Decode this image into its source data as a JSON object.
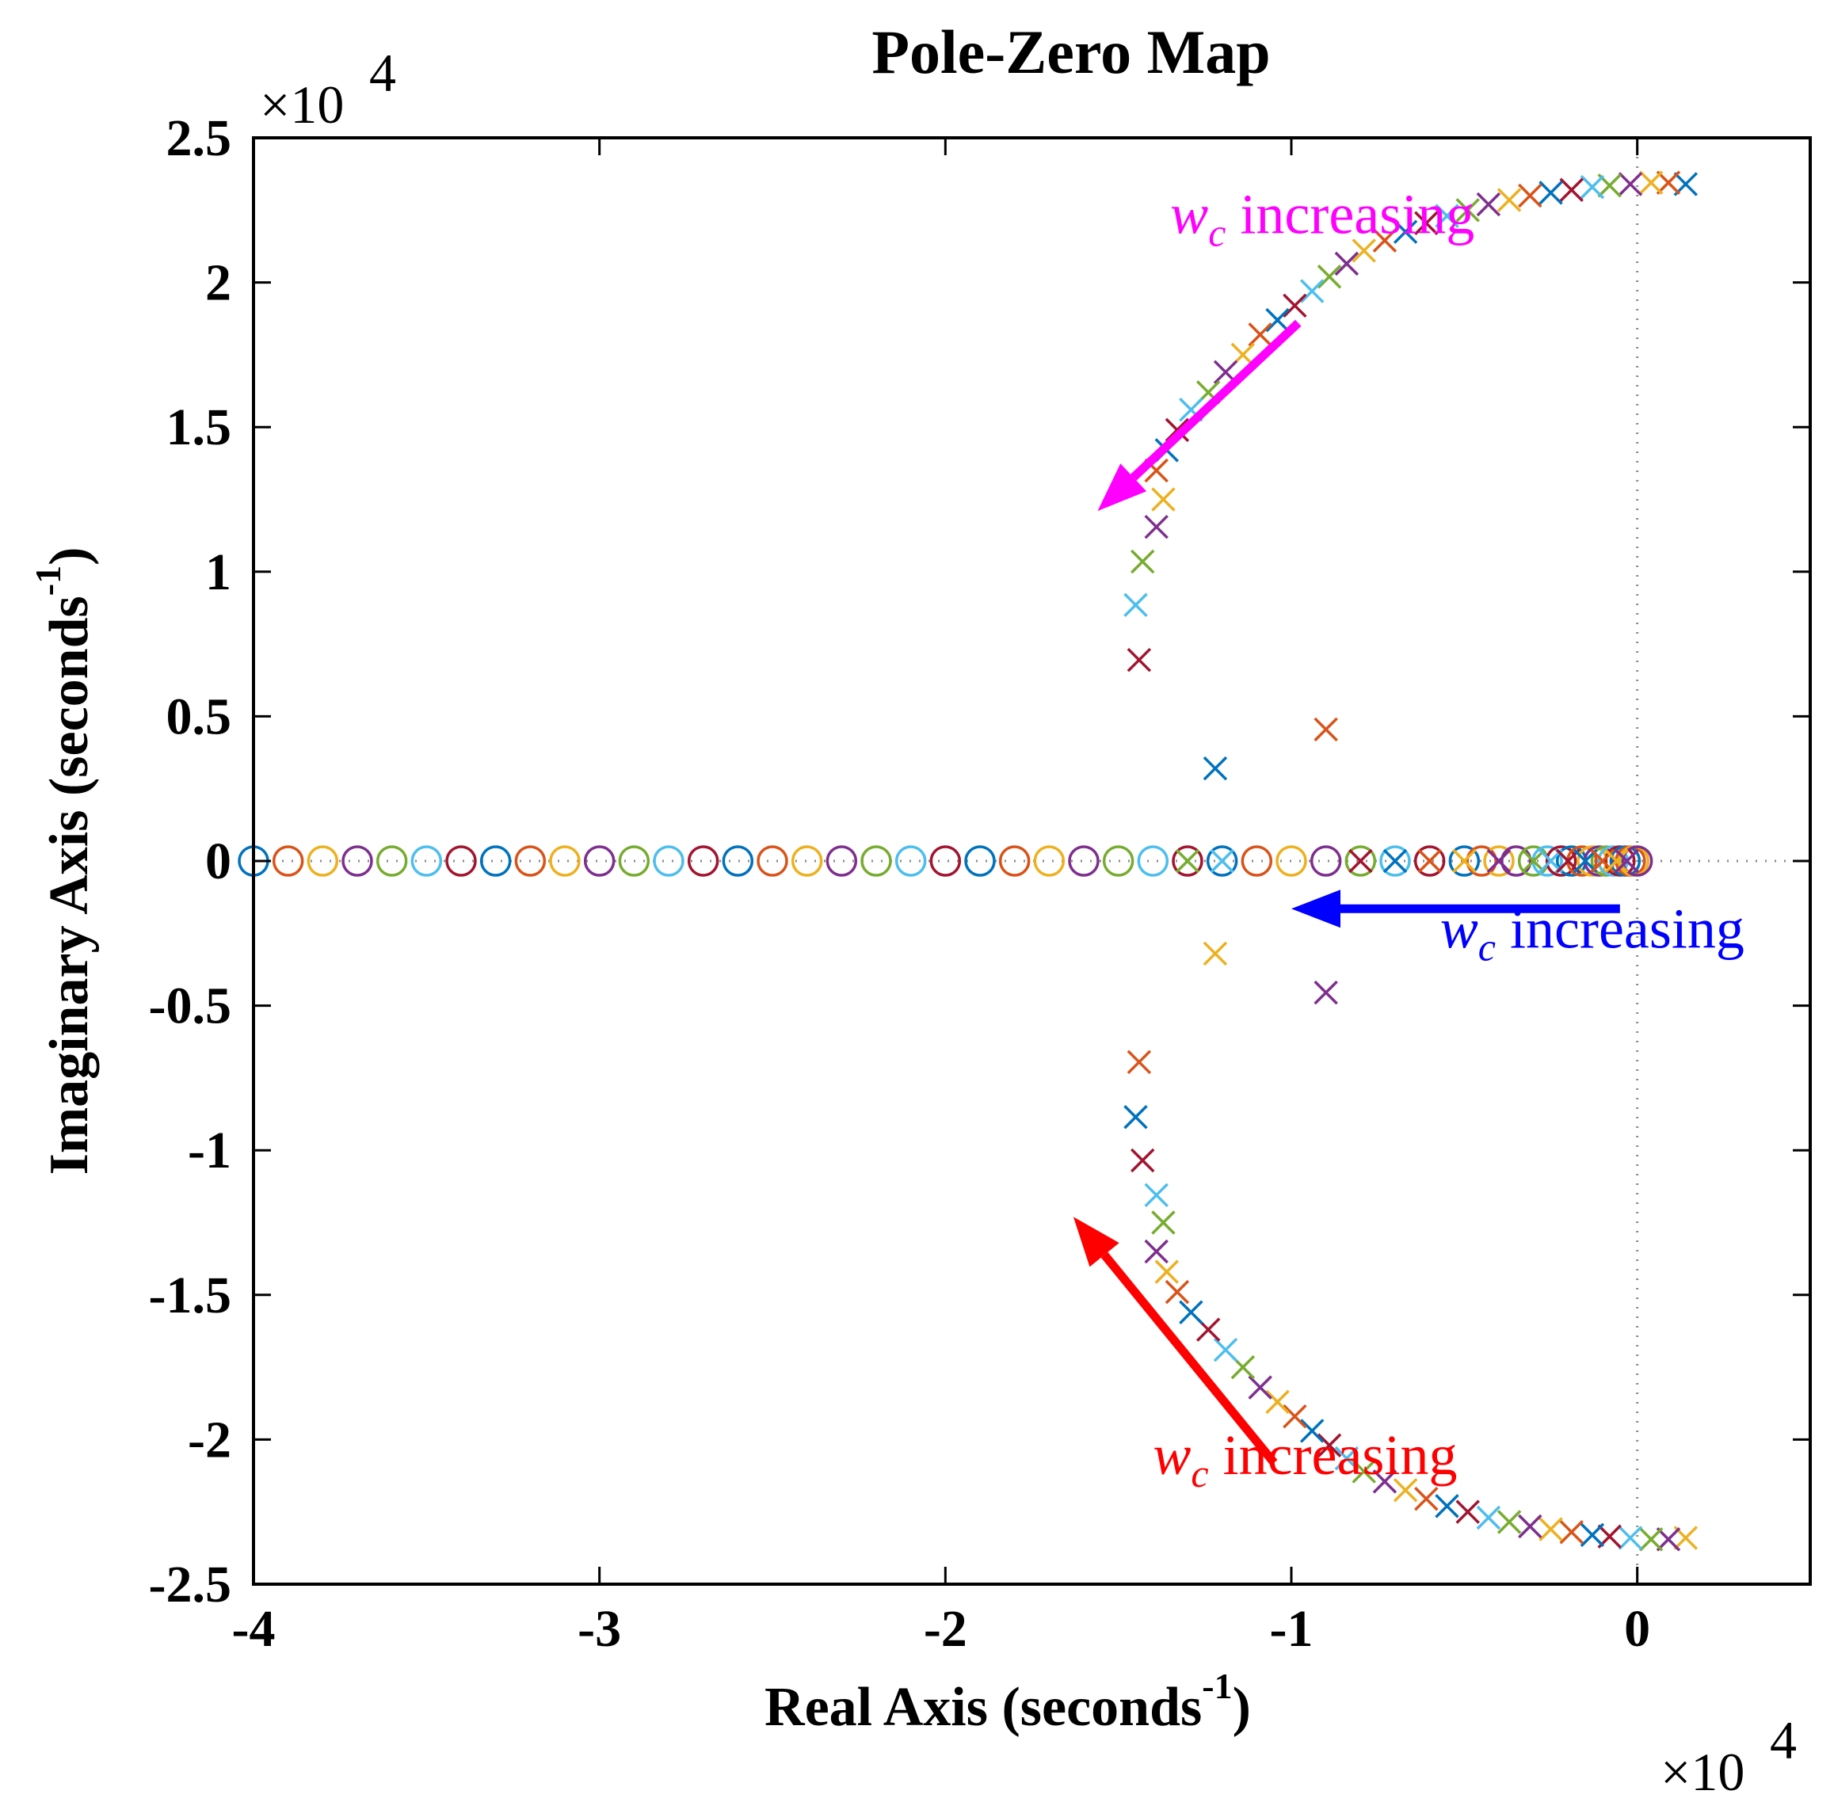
{
  "chart_data": {
    "type": "scatter",
    "title": "Pole-Zero Map",
    "xlabel": "Real Axis (seconds",
    "ylabel": "Imaginary Axis (seconds",
    "label_exponent": "-1",
    "x_multiplier": "×10",
    "y_multiplier": "×10",
    "multiplier_exponent": "4",
    "xlim": [
      -4.0,
      0.5
    ],
    "ylim": [
      -2.5,
      2.5
    ],
    "x_ticks": [
      -4,
      -3,
      -2,
      -1,
      0
    ],
    "x_tick_labels": [
      "-4",
      "-3",
      "-2",
      "-1",
      "0"
    ],
    "y_ticks": [
      2.5,
      2,
      1.5,
      1,
      0.5,
      0,
      -0.5,
      -1,
      -1.5,
      -2,
      -2.5
    ],
    "y_tick_labels": [
      "2.5",
      "2",
      "1.5",
      "1",
      "0.5",
      "0",
      "-0.5",
      "-1",
      "-1.5",
      "-2",
      "-2.5"
    ],
    "palette": [
      "#0072BD",
      "#D95319",
      "#EDB120",
      "#7E2F8E",
      "#77AC30",
      "#4DBEEE",
      "#A2142F"
    ],
    "series": [
      {
        "name": "zeros",
        "marker": "o",
        "points": [
          [
            -4.0,
            0
          ],
          [
            -3.9,
            0
          ],
          [
            -3.8,
            0
          ],
          [
            -3.7,
            0
          ],
          [
            -3.6,
            0
          ],
          [
            -3.5,
            0
          ],
          [
            -3.4,
            0
          ],
          [
            -3.3,
            0
          ],
          [
            -3.2,
            0
          ],
          [
            -3.1,
            0
          ],
          [
            -3.0,
            0
          ],
          [
            -2.9,
            0
          ],
          [
            -2.8,
            0
          ],
          [
            -2.7,
            0
          ],
          [
            -2.6,
            0
          ],
          [
            -2.5,
            0
          ],
          [
            -2.4,
            0
          ],
          [
            -2.3,
            0
          ],
          [
            -2.2,
            0
          ],
          [
            -2.1,
            0
          ],
          [
            -2.0,
            0
          ],
          [
            -1.9,
            0
          ],
          [
            -1.8,
            0
          ],
          [
            -1.7,
            0
          ],
          [
            -1.6,
            0
          ],
          [
            -1.5,
            0
          ],
          [
            -1.4,
            0
          ],
          [
            -1.3,
            0
          ],
          [
            -1.2,
            0
          ],
          [
            -1.1,
            0
          ],
          [
            -1.0,
            0
          ],
          [
            -0.9,
            0
          ],
          [
            -0.8,
            0
          ],
          [
            -0.7,
            0
          ],
          [
            -0.6,
            0
          ],
          [
            -0.5,
            0
          ],
          [
            -0.45,
            0
          ],
          [
            -0.4,
            0
          ],
          [
            -0.35,
            0
          ],
          [
            -0.3,
            0
          ],
          [
            -0.26,
            0
          ],
          [
            -0.22,
            0
          ],
          [
            -0.19,
            0
          ],
          [
            -0.16,
            0
          ],
          [
            -0.13,
            0
          ],
          [
            -0.11,
            0
          ],
          [
            -0.09,
            0
          ],
          [
            -0.07,
            0
          ],
          [
            -0.05,
            0
          ],
          [
            -0.035,
            0
          ],
          [
            -0.02,
            0
          ],
          [
            -0.01,
            0
          ],
          [
            0.0,
            0
          ]
        ]
      },
      {
        "name": "poles",
        "marker": "x",
        "points": [
          [
            0.14,
            2.34
          ],
          [
            0.09,
            2.345
          ],
          [
            0.04,
            2.345
          ],
          [
            -0.02,
            2.34
          ],
          [
            -0.08,
            2.335
          ],
          [
            -0.13,
            2.33
          ],
          [
            -0.19,
            2.32
          ],
          [
            -0.25,
            2.31
          ],
          [
            -0.31,
            2.3
          ],
          [
            -0.37,
            2.285
          ],
          [
            -0.43,
            2.27
          ],
          [
            -0.49,
            2.25
          ],
          [
            -0.55,
            2.23
          ],
          [
            -0.61,
            2.205
          ],
          [
            -0.67,
            2.175
          ],
          [
            -0.73,
            2.145
          ],
          [
            -0.79,
            2.11
          ],
          [
            -0.84,
            2.065
          ],
          [
            -0.89,
            2.02
          ],
          [
            -0.94,
            1.97
          ],
          [
            -0.99,
            1.92
          ],
          [
            -1.04,
            1.87
          ],
          [
            -1.09,
            1.82
          ],
          [
            -1.14,
            1.75
          ],
          [
            -1.19,
            1.69
          ],
          [
            -1.24,
            1.62
          ],
          [
            -1.29,
            1.56
          ],
          [
            -1.33,
            1.49
          ],
          [
            -1.36,
            1.42
          ],
          [
            -1.39,
            1.35
          ],
          [
            -1.37,
            1.25
          ],
          [
            -1.39,
            1.155
          ],
          [
            -1.43,
            1.035
          ],
          [
            -1.45,
            0.885
          ],
          [
            -1.44,
            0.695
          ],
          [
            -1.22,
            0.32
          ],
          [
            -0.9,
            0.455
          ],
          [
            0.14,
            -2.34
          ],
          [
            0.09,
            -2.345
          ],
          [
            0.04,
            -2.345
          ],
          [
            -0.02,
            -2.34
          ],
          [
            -0.08,
            -2.335
          ],
          [
            -0.13,
            -2.33
          ],
          [
            -0.19,
            -2.32
          ],
          [
            -0.25,
            -2.31
          ],
          [
            -0.31,
            -2.3
          ],
          [
            -0.37,
            -2.285
          ],
          [
            -0.43,
            -2.27
          ],
          [
            -0.49,
            -2.25
          ],
          [
            -0.55,
            -2.23
          ],
          [
            -0.61,
            -2.205
          ],
          [
            -0.67,
            -2.175
          ],
          [
            -0.73,
            -2.145
          ],
          [
            -0.79,
            -2.11
          ],
          [
            -0.84,
            -2.065
          ],
          [
            -0.89,
            -2.02
          ],
          [
            -0.94,
            -1.97
          ],
          [
            -0.99,
            -1.92
          ],
          [
            -1.04,
            -1.87
          ],
          [
            -1.09,
            -1.82
          ],
          [
            -1.14,
            -1.75
          ],
          [
            -1.19,
            -1.69
          ],
          [
            -1.24,
            -1.62
          ],
          [
            -1.29,
            -1.56
          ],
          [
            -1.33,
            -1.49
          ],
          [
            -1.36,
            -1.42
          ],
          [
            -1.39,
            -1.35
          ],
          [
            -1.37,
            -1.25
          ],
          [
            -1.39,
            -1.155
          ],
          [
            -1.43,
            -1.035
          ],
          [
            -1.45,
            -0.885
          ],
          [
            -1.44,
            -0.695
          ],
          [
            -1.22,
            -0.32
          ],
          [
            -0.9,
            -0.455
          ],
          [
            -1.3,
            0
          ],
          [
            -1.2,
            0
          ],
          [
            -0.8,
            0
          ],
          [
            -0.7,
            0
          ],
          [
            -0.6,
            0
          ],
          [
            -0.5,
            0
          ],
          [
            -0.4,
            0
          ],
          [
            -0.3,
            0
          ],
          [
            -0.25,
            0
          ],
          [
            -0.2,
            0
          ],
          [
            -0.15,
            0
          ],
          [
            -0.1,
            0
          ],
          [
            -0.06,
            0
          ],
          [
            -0.03,
            0
          ]
        ]
      }
    ],
    "annotations": [
      {
        "name": "magenta",
        "text_base": "w",
        "text_sub": "c",
        "text_rest": " increasing",
        "color": "#FF00FF",
        "arrow_from": [
          -0.98,
          1.86
        ],
        "arrow_to": [
          -1.56,
          1.21
        ],
        "text_at": [
          -1.35,
          2.17
        ]
      },
      {
        "name": "blue",
        "text_base": "w",
        "text_sub": "c",
        "text_rest": " increasing",
        "color": "#0000FF",
        "arrow_from": [
          -0.05,
          -0.165
        ],
        "arrow_to": [
          -1.0,
          -0.165
        ],
        "text_at": [
          -0.57,
          -0.3
        ]
      },
      {
        "name": "red",
        "text_base": "w",
        "text_sub": "c",
        "text_rest": " increasing",
        "color": "#FF0000",
        "arrow_from": [
          -1.05,
          -2.08
        ],
        "arrow_to": [
          -1.63,
          -1.23
        ],
        "text_at": [
          -1.4,
          -2.12
        ]
      }
    ]
  }
}
